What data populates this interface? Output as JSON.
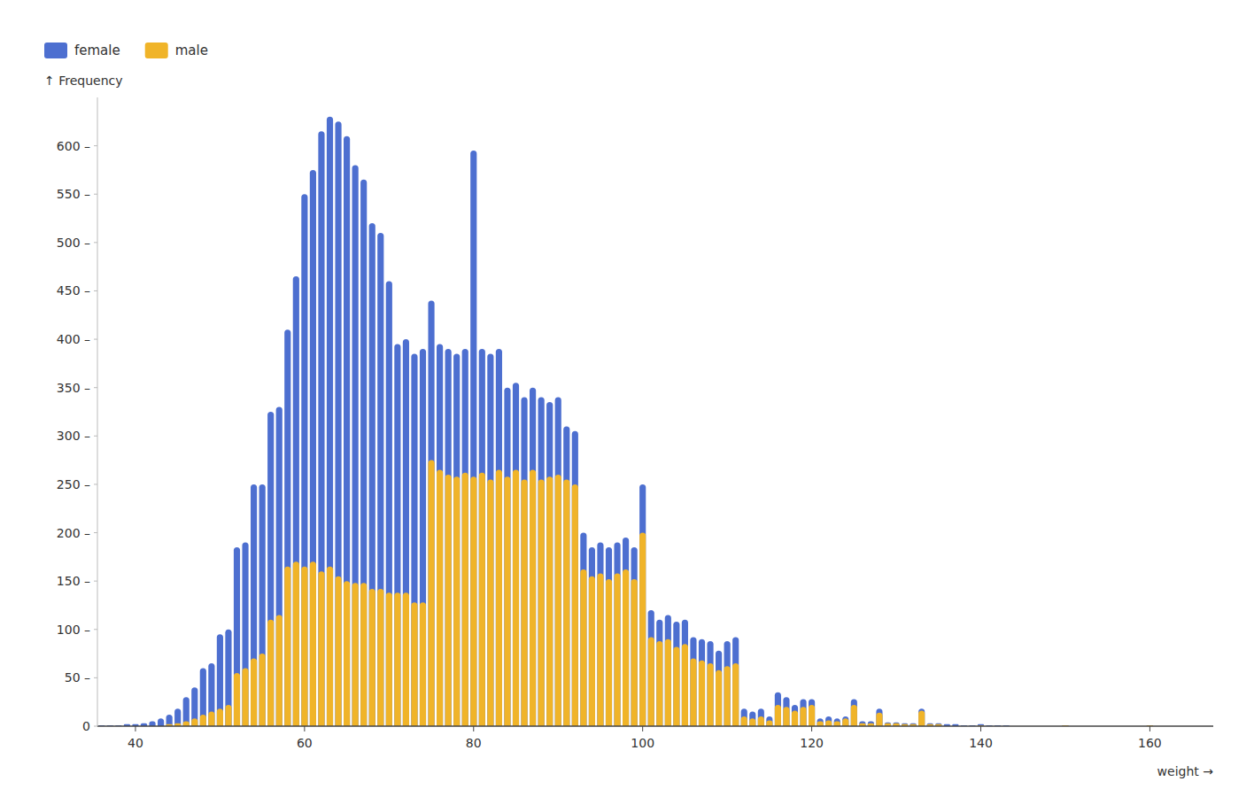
{
  "chart_data": {
    "type": "bar",
    "xlabel": "weight →",
    "ylabel": "↑ Frequency",
    "x": [
      36,
      37,
      38,
      39,
      40,
      41,
      42,
      43,
      44,
      45,
      46,
      47,
      48,
      49,
      50,
      51,
      52,
      53,
      54,
      55,
      56,
      57,
      58,
      59,
      60,
      61,
      62,
      63,
      64,
      65,
      66,
      67,
      68,
      69,
      70,
      71,
      72,
      73,
      74,
      75,
      76,
      77,
      78,
      79,
      80,
      81,
      82,
      83,
      84,
      85,
      86,
      87,
      88,
      89,
      90,
      91,
      92,
      93,
      94,
      95,
      96,
      97,
      98,
      99,
      100,
      101,
      102,
      103,
      104,
      105,
      106,
      107,
      108,
      109,
      110,
      111,
      112,
      113,
      114,
      115,
      116,
      117,
      118,
      119,
      120,
      121,
      122,
      123,
      124,
      125,
      126,
      127,
      128,
      129,
      130,
      131,
      132,
      133,
      134,
      135,
      136,
      137,
      138,
      139,
      140,
      141,
      142,
      143,
      150,
      160
    ],
    "series": [
      {
        "name": "female",
        "color": "#4d6fd0",
        "values": [
          1,
          1,
          1,
          2,
          2,
          3,
          5,
          8,
          12,
          18,
          30,
          40,
          60,
          65,
          95,
          100,
          185,
          190,
          250,
          250,
          325,
          330,
          410,
          465,
          550,
          575,
          615,
          630,
          625,
          610,
          580,
          565,
          520,
          510,
          460,
          395,
          400,
          385,
          390,
          440,
          395,
          390,
          385,
          390,
          595,
          390,
          385,
          390,
          350,
          355,
          340,
          350,
          340,
          335,
          340,
          310,
          305,
          200,
          185,
          190,
          185,
          190,
          195,
          185,
          250,
          120,
          110,
          115,
          108,
          110,
          92,
          90,
          88,
          78,
          88,
          92,
          18,
          15,
          18,
          10,
          35,
          30,
          22,
          28,
          28,
          8,
          10,
          8,
          10,
          28,
          5,
          5,
          18,
          4,
          4,
          3,
          3,
          18,
          3,
          3,
          2,
          2,
          1,
          1,
          2,
          1,
          1,
          1,
          1,
          1
        ]
      },
      {
        "name": "male",
        "color": "#f0b429",
        "values": [
          null,
          null,
          null,
          null,
          null,
          null,
          null,
          null,
          2,
          3,
          5,
          8,
          12,
          15,
          18,
          22,
          55,
          60,
          70,
          75,
          110,
          115,
          165,
          170,
          165,
          170,
          160,
          165,
          155,
          150,
          148,
          148,
          142,
          142,
          138,
          138,
          138,
          128,
          128,
          275,
          265,
          260,
          258,
          262,
          258,
          262,
          255,
          265,
          258,
          265,
          255,
          265,
          255,
          258,
          260,
          255,
          250,
          162,
          155,
          158,
          152,
          158,
          162,
          152,
          200,
          92,
          88,
          90,
          82,
          85,
          70,
          68,
          65,
          58,
          62,
          65,
          10,
          8,
          10,
          6,
          22,
          20,
          16,
          20,
          22,
          5,
          6,
          5,
          8,
          22,
          3,
          3,
          14,
          3,
          3,
          2,
          2,
          16,
          2,
          2,
          null,
          null,
          null,
          null,
          1,
          null,
          null,
          null,
          1,
          1
        ]
      }
    ],
    "xlim": [
      35.5,
      167.5
    ],
    "ylim": [
      0,
      650
    ],
    "xticks": [
      40,
      60,
      80,
      100,
      120,
      140,
      160
    ],
    "yticks": [
      0,
      {
        "value": 50,
        "label": "50 –"
      },
      {
        "value": 100,
        "label": "100 –"
      },
      {
        "value": 150,
        "label": "150 –"
      },
      {
        "value": 200,
        "label": "200 –"
      },
      {
        "value": 250,
        "label": "250 –"
      },
      {
        "value": 300,
        "label": "300 –"
      },
      {
        "value": 350,
        "label": "350 –"
      },
      {
        "value": 400,
        "label": "400 –"
      },
      {
        "value": 450,
        "label": "450 –"
      },
      {
        "value": 500,
        "label": "500 –"
      },
      {
        "value": 550,
        "label": "550 –"
      },
      {
        "value": 600,
        "label": "600 –"
      }
    ],
    "grid": false,
    "legend": "upper left"
  }
}
